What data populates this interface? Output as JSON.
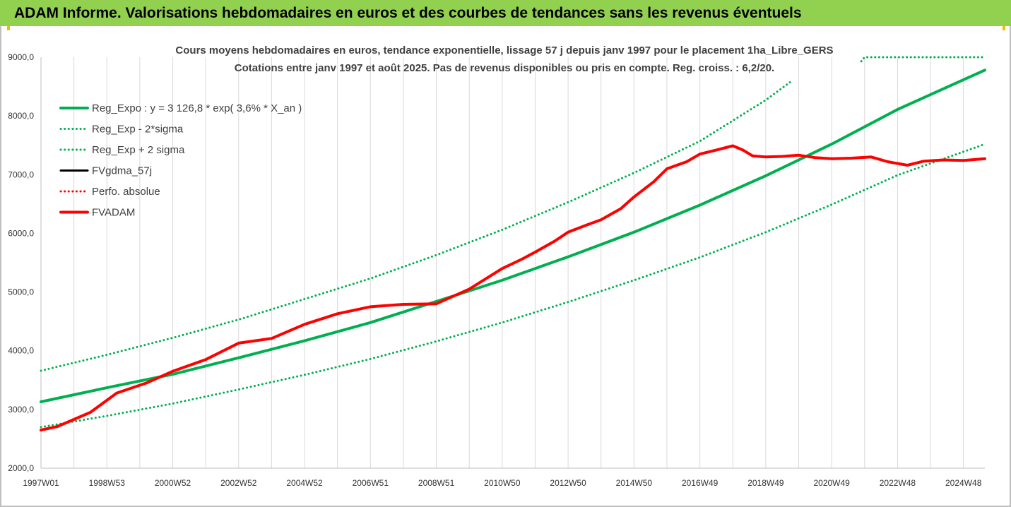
{
  "header": {
    "title": "ADAM Informe. Valorisations hebdomadaires en euros et des courbes de tendances sans les revenus éventuels"
  },
  "colors": {
    "header_bg": "#92d050",
    "green": "#00b050",
    "red": "#ff0000",
    "black": "#000000",
    "grid": "#d9d9d9"
  },
  "chart_data": {
    "type": "line",
    "title": [
      "Cours moyens hebdomadaires en euros, tendance exponentielle, lissage 57 j depuis janv 1997 pour le placement 1ha_Libre_GERS",
      "Cotations entre janv 1997 et août 2025.  Pas de revenus disponibles ou pris en compte. Reg. croiss. : 6,2/20."
    ],
    "xlabel": "",
    "ylabel": "",
    "ylim": [
      2000,
      9000
    ],
    "yticks": [
      "2000,0",
      "3000,0",
      "4000,0",
      "5000,0",
      "6000,0",
      "7000,0",
      "8000,0",
      "9000,0"
    ],
    "xlim": [
      1997.0,
      2025.65
    ],
    "xtick_labels": [
      "1997W01",
      "1998W53",
      "2000W52",
      "2002W52",
      "2004W52",
      "2006W51",
      "2008W51",
      "2010W50",
      "2012W50",
      "2014W50",
      "2016W49",
      "2018W49",
      "2020W49",
      "2022W48",
      "2024W48"
    ],
    "xtick_positions": [
      1997.0,
      1999.0,
      2001.0,
      2003.0,
      2005.0,
      2007.0,
      2009.0,
      2011.0,
      2013.0,
      2015.0,
      2017.0,
      2019.0,
      2021.0,
      2023.0,
      2025.0
    ],
    "grid": "vertical",
    "legend_position": "top-left",
    "series": [
      {
        "name": "Reg_Expo : y = 3 126,8 * exp( 3,6% *  X_an )",
        "style": "solid",
        "color": "#00b050",
        "width": 4,
        "x": [
          1997.0,
          1999.0,
          2001.0,
          2003.0,
          2005.0,
          2007.0,
          2009.0,
          2011.0,
          2013.0,
          2015.0,
          2017.0,
          2019.0,
          2021.0,
          2023.0,
          2025.65
        ],
        "y": [
          3130,
          3370,
          3600,
          3880,
          4170,
          4480,
          4840,
          5200,
          5600,
          6020,
          6480,
          6980,
          7520,
          8110,
          8780
        ]
      },
      {
        "name": "Reg_Exp - 2*sigma",
        "style": "dotted",
        "color": "#00b050",
        "width": 3,
        "x": [
          1997.0,
          1999.0,
          2001.0,
          2003.0,
          2005.0,
          2007.0,
          2009.0,
          2011.0,
          2013.0,
          2015.0,
          2017.0,
          2019.0,
          2021.0,
          2023.0,
          2025.65
        ],
        "y": [
          2700,
          2890,
          3100,
          3340,
          3590,
          3860,
          4160,
          4480,
          4830,
          5200,
          5590,
          6020,
          6490,
          6990,
          7520
        ]
      },
      {
        "name": "Reg_Exp + 2 sigma",
        "style": "dotted",
        "color": "#00b050",
        "width": 3,
        "x": [
          1997.0,
          1999.0,
          2001.0,
          2003.0,
          2005.0,
          2007.0,
          2009.0,
          2011.0,
          2013.0,
          2015.0,
          2017.0,
          2019.0,
          2019.8
        ],
        "y": [
          3660,
          3930,
          4220,
          4530,
          4880,
          5230,
          5630,
          6060,
          6530,
          7030,
          7570,
          8270,
          8600
        ],
        "extra_segment": {
          "x": [
            2021.9,
            2022.0,
            2025.65
          ],
          "y": [
            8930,
            9000,
            9000
          ]
        }
      },
      {
        "name": "FVgdma_57j",
        "style": "solid",
        "color": "#000000",
        "width": 3,
        "x": [],
        "y": []
      },
      {
        "name": "Perfo. absolue",
        "style": "dotted",
        "color": "#ff0000",
        "width": 3,
        "x": [],
        "y": []
      },
      {
        "name": "FVADAM",
        "style": "solid",
        "color": "#ff0000",
        "width": 4,
        "x": [
          1997.0,
          1997.5,
          1998.5,
          1999.3,
          2000.2,
          2001.0,
          2002.0,
          2003.0,
          2004.0,
          2005.0,
          2006.0,
          2007.0,
          2008.0,
          2009.0,
          2010.0,
          2011.0,
          2011.6,
          2012.0,
          2012.6,
          2013.0,
          2013.6,
          2014.0,
          2014.6,
          2015.0,
          2015.6,
          2016.0,
          2016.6,
          2017.0,
          2017.5,
          2018.0,
          2018.3,
          2018.6,
          2019.0,
          2019.5,
          2020.0,
          2020.5,
          2021.0,
          2021.6,
          2022.2,
          2022.7,
          2023.3,
          2023.8,
          2024.4,
          2025.0,
          2025.65
        ],
        "y": [
          2650,
          2710,
          2950,
          3280,
          3450,
          3650,
          3850,
          4130,
          4210,
          4450,
          4630,
          4750,
          4790,
          4800,
          5050,
          5400,
          5560,
          5680,
          5870,
          6020,
          6150,
          6230,
          6420,
          6620,
          6880,
          7100,
          7220,
          7350,
          7420,
          7490,
          7420,
          7320,
          7300,
          7310,
          7330,
          7290,
          7270,
          7280,
          7300,
          7220,
          7160,
          7230,
          7250,
          7240,
          7270
        ]
      }
    ]
  }
}
